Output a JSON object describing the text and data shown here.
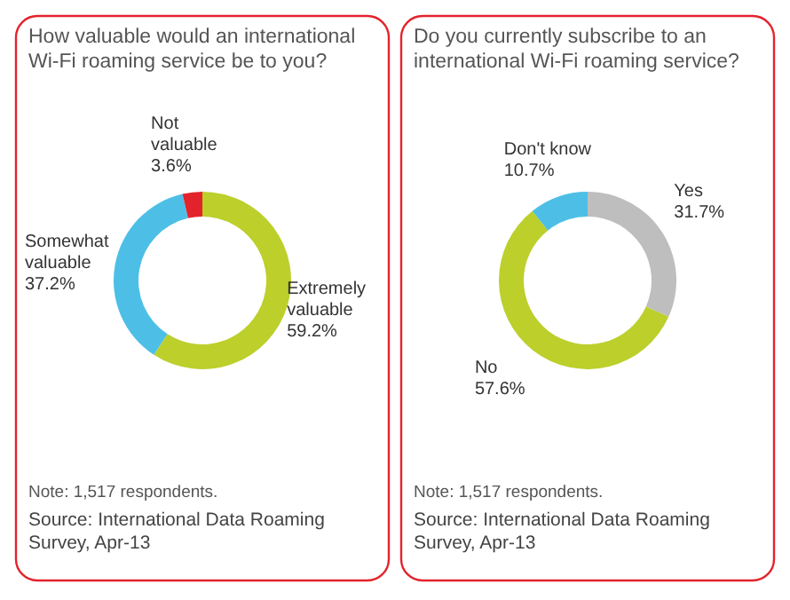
{
  "chart_data": [
    {
      "type": "donut",
      "title": "How valuable would an international Wi-Fi roaming service be to you?",
      "categories": [
        "Extremely valuable",
        "Somewhat valuable",
        "Not valuable"
      ],
      "values": [
        59.2,
        37.2,
        3.6
      ],
      "value_labels": [
        "59.2%",
        "37.2%",
        "3.6%"
      ],
      "colors": [
        "#bccf2b",
        "#4dbfe6",
        "#e3232c"
      ],
      "annotations": [
        "Note: 1,517 respondents.",
        "Source: International Data Roaming Survey, Apr-13"
      ]
    },
    {
      "type": "donut",
      "title": "Do you currently subscribe to an international Wi-Fi roaming service?",
      "categories": [
        "Yes",
        "No",
        "Don't know"
      ],
      "values": [
        31.7,
        57.6,
        10.7
      ],
      "value_labels": [
        "31.7%",
        "57.6%",
        "10.7%"
      ],
      "colors": [
        "#bebebe",
        "#bccf2b",
        "#4dbfe6"
      ],
      "annotations": [
        "Note: 1,517 respondents.",
        "Source: International Data Roaming Survey, Apr-13"
      ]
    }
  ]
}
